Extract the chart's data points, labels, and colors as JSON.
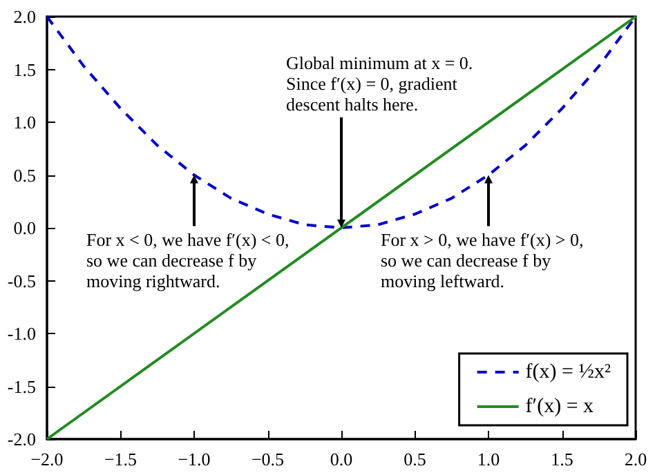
{
  "chart_data": {
    "type": "line",
    "x": [
      -2,
      -1.75,
      -1.5,
      -1.25,
      -1,
      -0.75,
      -0.5,
      -0.25,
      0,
      0.25,
      0.5,
      0.75,
      1,
      1.25,
      1.5,
      1.75,
      2
    ],
    "series": [
      {
        "name": "f(x) = ½x²",
        "color": "#0000cc",
        "line_style": "dashed",
        "values": [
          2.0,
          1.53,
          1.13,
          0.78,
          0.5,
          0.28,
          0.13,
          0.03,
          0,
          0.03,
          0.13,
          0.28,
          0.5,
          0.78,
          1.13,
          1.53,
          2.0
        ]
      },
      {
        "name": "f′(x) = x",
        "color": "#228b22",
        "line_style": "solid",
        "x": [
          -2,
          2
        ],
        "values": [
          -2,
          2
        ]
      }
    ],
    "xlim": [
      -2,
      2
    ],
    "xticks": [
      {
        "value": -2,
        "label": "−2.0"
      },
      {
        "value": -1.5,
        "label": "−1.5"
      },
      {
        "value": -1,
        "label": "−1.0"
      },
      {
        "value": -0.5,
        "label": "−0.5"
      },
      {
        "value": 0,
        "label": "0.0"
      },
      {
        "value": 0.5,
        "label": "0.5"
      },
      {
        "value": 1,
        "label": "1.0"
      },
      {
        "value": 1.5,
        "label": "1.5"
      },
      {
        "value": 2,
        "label": "2.0"
      }
    ],
    "ylim": [
      -2,
      2
    ],
    "yticks": [
      {
        "value": -2,
        "label": "-2.0"
      },
      {
        "value": -1.5,
        "label": "-1.5"
      },
      {
        "value": -1,
        "label": "-1.0"
      },
      {
        "value": -0.5,
        "label": "-0.5"
      },
      {
        "value": 0,
        "label": "0.0"
      },
      {
        "value": 0.5,
        "label": "0.5"
      },
      {
        "value": 1,
        "label": "1.0"
      },
      {
        "value": 1.5,
        "label": "1.5"
      },
      {
        "value": 2,
        "label": "2.0"
      }
    ],
    "grid": false,
    "legend": "bottom right",
    "marker": "none",
    "annotations": [
      {
        "text": "For x < 0, we have f′(x) < 0,\nso we can decrease f by\nmoving rightward.",
        "x": -1,
        "y": 0.5
      },
      {
        "text": "Global minimum at x = 0.\nSince f′(x) = 0, gradient\ndescent halts here.",
        "x": 0,
        "y": 0
      },
      {
        "text": "For x > 0, we have f′(x) > 0,\nso we can decrease f by\nmoving leftward.",
        "x": 1,
        "y": 0.5
      }
    ]
  }
}
